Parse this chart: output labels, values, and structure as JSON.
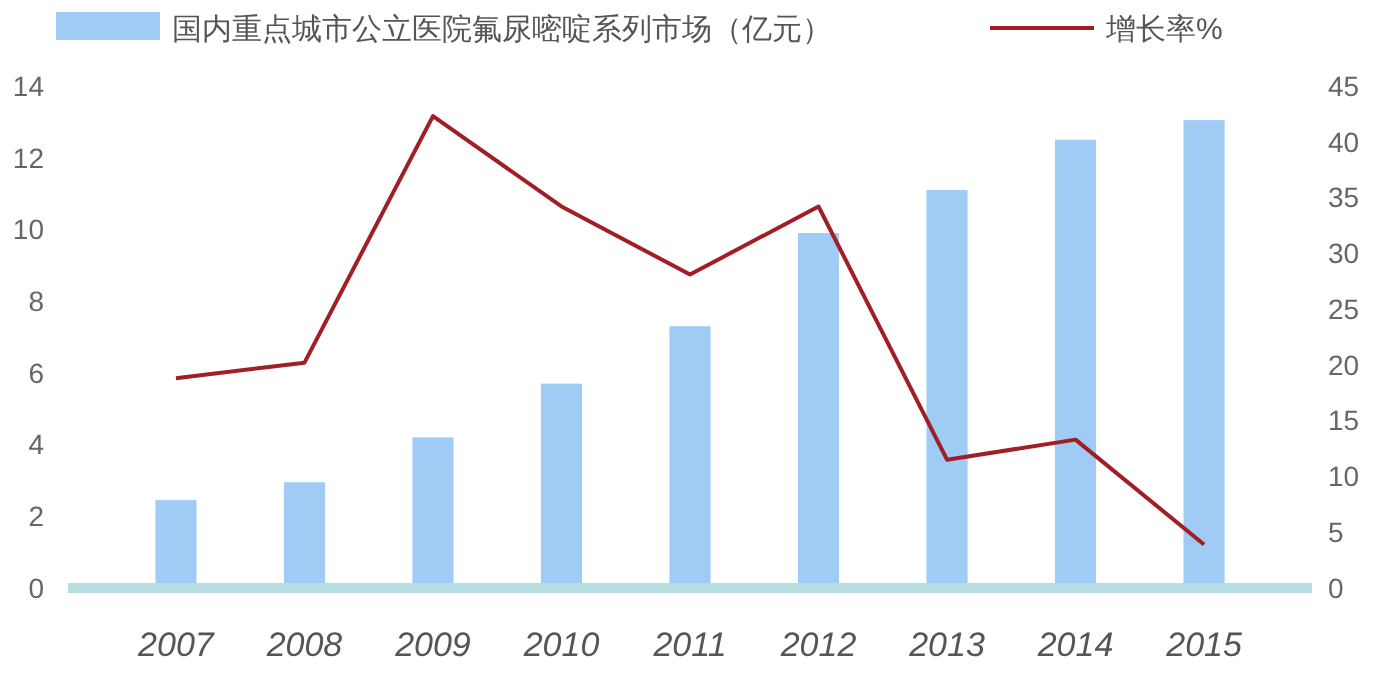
{
  "chart_data": {
    "type": "bar",
    "categories": [
      "2007",
      "2008",
      "2009",
      "2010",
      "2011",
      "2012",
      "2013",
      "2014",
      "2015"
    ],
    "series": [
      {
        "name": "国内重点城市公立医院氟尿嘧啶系列市场（亿元）",
        "color": "#9fcbf5",
        "values": [
          2.45,
          2.95,
          4.2,
          5.7,
          7.3,
          9.9,
          11.1,
          12.5,
          13.05
        ]
      },
      {
        "name": "增长率%",
        "type": "line",
        "axis": "y2",
        "color": "#a01e24",
        "values": [
          18.8,
          20.2,
          42.3,
          34.2,
          28.1,
          34.2,
          11.5,
          13.3,
          3.9
        ]
      }
    ],
    "ylim": [
      0,
      14
    ],
    "yticks": [
      0,
      2,
      4,
      6,
      8,
      10,
      12,
      14
    ],
    "y2lim": [
      0,
      45
    ],
    "y2ticks": [
      0,
      5,
      10,
      15,
      20,
      25,
      30,
      35,
      40,
      45
    ],
    "legend": "top",
    "grid": false,
    "marker": "none",
    "line_style": "solid"
  }
}
